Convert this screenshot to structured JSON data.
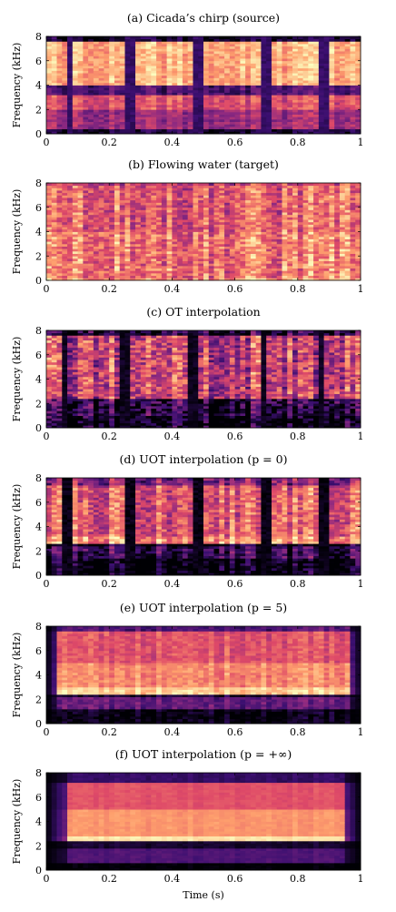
{
  "figure": {
    "xlabel": "Time (s)",
    "ylabel": "Frequency (kHz)",
    "xticks": [
      "0",
      "0.2",
      "0.4",
      "0.6",
      "0.8",
      "1"
    ],
    "yticks": [
      "0",
      "2",
      "4",
      "6",
      "8"
    ],
    "colormap": [
      "#000004",
      "#3b0f70",
      "#8c2981",
      "#de4968",
      "#fe9f6d",
      "#fcfdbf"
    ]
  },
  "chart_data": [
    {
      "type": "heatmap",
      "title": "(a) Cicada’s chirp (source)",
      "xlabel": "",
      "ylabel": "Frequency (kHz)",
      "xlim": [
        0,
        1
      ],
      "ylim": [
        0,
        8
      ],
      "bands": [
        {
          "from": 0.0,
          "to": 0.5,
          "intensity": 0.1
        },
        {
          "from": 0.5,
          "to": 2.0,
          "intensity": 0.45
        },
        {
          "from": 2.0,
          "to": 3.3,
          "intensity": 0.62
        },
        {
          "from": 3.3,
          "to": 4.1,
          "intensity": 0.25
        },
        {
          "from": 4.1,
          "to": 7.7,
          "intensity": 0.85
        },
        {
          "from": 7.7,
          "to": 8.0,
          "intensity": 0.1
        }
      ],
      "gaps": [
        [
          0.06,
          0.09
        ],
        [
          0.25,
          0.28
        ],
        [
          0.47,
          0.5
        ],
        [
          0.68,
          0.71
        ],
        [
          0.87,
          0.9
        ]
      ],
      "gap_intensity": 0.18,
      "texture": 0.18
    },
    {
      "type": "heatmap",
      "title": "(b) Flowing water (target)",
      "xlabel": "",
      "ylabel": "Frequency (kHz)",
      "xlim": [
        0,
        1
      ],
      "ylim": [
        0,
        8
      ],
      "bands": [
        {
          "from": 0.0,
          "to": 0.3,
          "intensity": 0.82
        },
        {
          "from": 0.3,
          "to": 4.0,
          "intensity": 0.72
        },
        {
          "from": 4.0,
          "to": 7.8,
          "intensity": 0.66
        },
        {
          "from": 7.8,
          "to": 8.0,
          "intensity": 0.55
        }
      ],
      "gaps": [],
      "gap_intensity": 0.0,
      "texture": 0.3
    },
    {
      "type": "heatmap",
      "title": "(c) OT interpolation",
      "xlabel": "",
      "ylabel": "Frequency (kHz)",
      "xlim": [
        0,
        1
      ],
      "ylim": [
        0,
        8
      ],
      "bands": [
        {
          "from": 0.0,
          "to": 1.1,
          "intensity": 0.02
        },
        {
          "from": 1.1,
          "to": 2.0,
          "intensity": 0.12
        },
        {
          "from": 2.0,
          "to": 2.5,
          "intensity": 0.15
        },
        {
          "from": 2.5,
          "to": 7.7,
          "intensity": 0.55
        },
        {
          "from": 7.7,
          "to": 8.0,
          "intensity": 0.1
        }
      ],
      "gaps": [
        [
          0.05,
          0.07
        ],
        [
          0.24,
          0.27
        ],
        [
          0.45,
          0.48
        ],
        [
          0.68,
          0.7
        ],
        [
          0.86,
          0.89
        ]
      ],
      "gap_intensity": 0.05,
      "texture": 0.4
    },
    {
      "type": "heatmap",
      "title": "(d) UOT interpolation (p = 0)",
      "xlabel": "",
      "ylabel": "Frequency (kHz)",
      "xlim": [
        0,
        1
      ],
      "ylim": [
        0,
        8
      ],
      "bands": [
        {
          "from": 0.0,
          "to": 1.4,
          "intensity": 0.02
        },
        {
          "from": 1.4,
          "to": 2.4,
          "intensity": 0.2
        },
        {
          "from": 2.4,
          "to": 2.7,
          "intensity": 0.05
        },
        {
          "from": 2.7,
          "to": 3.2,
          "intensity": 0.8
        },
        {
          "from": 3.2,
          "to": 7.5,
          "intensity": 0.65
        },
        {
          "from": 7.5,
          "to": 8.0,
          "intensity": 0.4
        }
      ],
      "gaps": [
        [
          0.05,
          0.08
        ],
        [
          0.25,
          0.28
        ],
        [
          0.47,
          0.5
        ],
        [
          0.68,
          0.71
        ],
        [
          0.87,
          0.9
        ]
      ],
      "gap_intensity": 0.03,
      "texture": 0.3
    },
    {
      "type": "heatmap",
      "title": "(e) UOT interpolation (p = 5)",
      "xlabel": "",
      "ylabel": "Frequency (kHz)",
      "xlim": [
        0,
        1
      ],
      "ylim": [
        0,
        8
      ],
      "bands": [
        {
          "from": 0.0,
          "to": 1.2,
          "intensity": 0.03
        },
        {
          "from": 1.2,
          "to": 2.2,
          "intensity": 0.3
        },
        {
          "from": 2.2,
          "to": 2.5,
          "intensity": 0.08
        },
        {
          "from": 2.5,
          "to": 3.0,
          "intensity": 0.9
        },
        {
          "from": 3.0,
          "to": 5.0,
          "intensity": 0.75
        },
        {
          "from": 5.0,
          "to": 7.6,
          "intensity": 0.62
        },
        {
          "from": 7.6,
          "to": 8.0,
          "intensity": 0.25
        }
      ],
      "gaps": [],
      "gap_intensity": 0.0,
      "edges": [
        0.04,
        0.97
      ],
      "texture": 0.14
    },
    {
      "type": "heatmap",
      "title": "(f) UOT interpolation (p = +∞)",
      "xlabel": "Time (s)",
      "ylabel": "Frequency (kHz)",
      "xlim": [
        0,
        1
      ],
      "ylim": [
        0,
        8
      ],
      "bands": [
        {
          "from": 0.0,
          "to": 0.7,
          "intensity": 0.0
        },
        {
          "from": 0.7,
          "to": 1.9,
          "intensity": 0.25
        },
        {
          "from": 1.9,
          "to": 2.4,
          "intensity": 0.08
        },
        {
          "from": 2.4,
          "to": 2.9,
          "intensity": 0.95
        },
        {
          "from": 2.9,
          "to": 5.0,
          "intensity": 0.78
        },
        {
          "from": 5.0,
          "to": 7.3,
          "intensity": 0.62
        },
        {
          "from": 7.3,
          "to": 8.0,
          "intensity": 0.18
        }
      ],
      "gaps": [],
      "gap_intensity": 0.0,
      "edges": [
        0.06,
        0.95
      ],
      "texture": 0.05
    }
  ]
}
